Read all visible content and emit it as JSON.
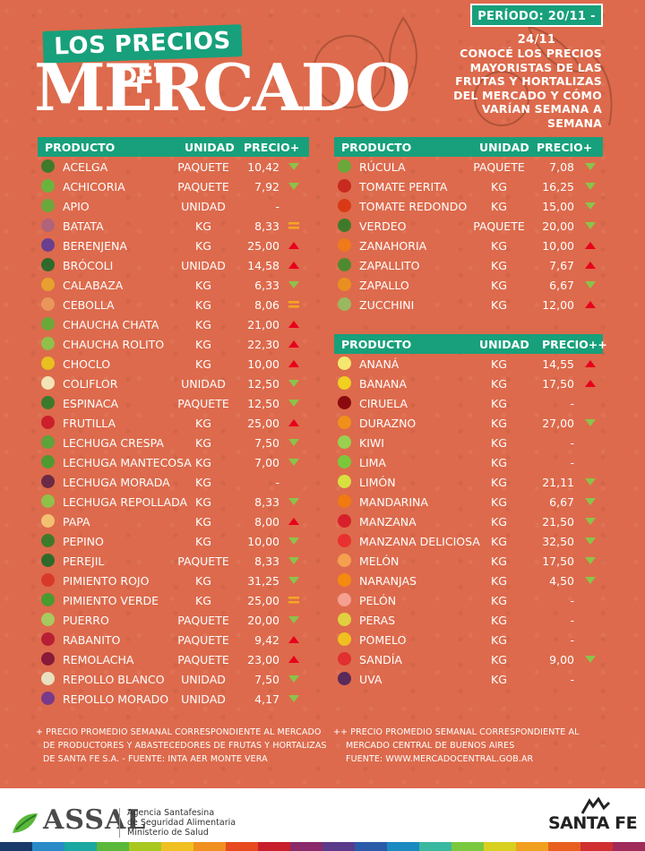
{
  "header": {
    "periodo": "PERÍODO: 20/11 - 24/11",
    "banner": "LOS PRECIOS DEL",
    "title": "MERCADO",
    "subtitle": [
      "CONOCÉ LOS PRECIOS",
      "MAYORISTAS DE LAS",
      "FRUTAS Y HORTALIZAS",
      "DEL MERCADO Y CÓMO",
      "VARÍAN SEMANA A SEMANA"
    ]
  },
  "colors": {
    "accent": "#17a07b",
    "background": "#dd6a4c",
    "up": "#e8001c",
    "down": "#8bc34a",
    "equal": "#f5a623"
  },
  "table_left": {
    "headers": {
      "producto": "PRODUCTO",
      "unidad": "UNIDAD",
      "precio": "PRECIO+"
    },
    "rows": [
      {
        "name": "ACELGA",
        "unit": "PAQUETE",
        "price": "10,42",
        "trend": "down",
        "color": "#3f7a2a"
      },
      {
        "name": "ACHICORIA",
        "unit": "PAQUETE",
        "price": "7,92",
        "trend": "down",
        "color": "#6bb33c"
      },
      {
        "name": "APIO",
        "unit": "UNIDAD",
        "price": "-",
        "trend": "none",
        "color": "#6aa83a"
      },
      {
        "name": "BATATA",
        "unit": "KG",
        "price": "8,33",
        "trend": "equal",
        "color": "#b0637a"
      },
      {
        "name": "BERENJENA",
        "unit": "KG",
        "price": "25,00",
        "trend": "up",
        "color": "#6b3f8f"
      },
      {
        "name": "BRÓCOLI",
        "unit": "UNIDAD",
        "price": "14,58",
        "trend": "up",
        "color": "#2f6a2a"
      },
      {
        "name": "CALABAZA",
        "unit": "KG",
        "price": "6,33",
        "trend": "down",
        "color": "#e8a030"
      },
      {
        "name": "CEBOLLA",
        "unit": "KG",
        "price": "8,06",
        "trend": "equal",
        "color": "#e8965a"
      },
      {
        "name": "CHAUCHA CHATA",
        "unit": "KG",
        "price": "21,00",
        "trend": "up",
        "color": "#6aa83a"
      },
      {
        "name": "CHAUCHA ROLITO",
        "unit": "KG",
        "price": "22,30",
        "trend": "up",
        "color": "#8fc04a"
      },
      {
        "name": "CHOCLO",
        "unit": "KG",
        "price": "10,00",
        "trend": "up",
        "color": "#e8c020"
      },
      {
        "name": "COLIFLOR",
        "unit": "UNIDAD",
        "price": "12,50",
        "trend": "down",
        "color": "#f3e3b5"
      },
      {
        "name": "ESPINACA",
        "unit": "PAQUETE",
        "price": "12,50",
        "trend": "down",
        "color": "#3b7a2a"
      },
      {
        "name": "FRUTILLA",
        "unit": "KG",
        "price": "25,00",
        "trend": "up",
        "color": "#cc1f2a"
      },
      {
        "name": "LECHUGA CRESPA",
        "unit": "KG",
        "price": "7,50",
        "trend": "down",
        "color": "#5ea33a"
      },
      {
        "name": "LECHUGA MANTECOSA",
        "unit": "KG",
        "price": "7,00",
        "trend": "down",
        "color": "#4f9a30"
      },
      {
        "name": "LECHUGA MORADA",
        "unit": "KG",
        "price": "-",
        "trend": "none",
        "color": "#6a2a45"
      },
      {
        "name": "LECHUGA REPOLLADA",
        "unit": "KG",
        "price": "8,33",
        "trend": "down",
        "color": "#8fc04a"
      },
      {
        "name": "PAPA",
        "unit": "KG",
        "price": "8,00",
        "trend": "up",
        "color": "#f2c070"
      },
      {
        "name": "PEPINO",
        "unit": "KG",
        "price": "10,00",
        "trend": "down",
        "color": "#3f7a2a"
      },
      {
        "name": "PEREJIL",
        "unit": "PAQUETE",
        "price": "8,33",
        "trend": "down",
        "color": "#2f6a2a"
      },
      {
        "name": "PIMIENTO ROJO",
        "unit": "KG",
        "price": "31,25",
        "trend": "down",
        "color": "#d83a2a"
      },
      {
        "name": "PIMIENTO VERDE",
        "unit": "KG",
        "price": "25,00",
        "trend": "equal",
        "color": "#4a9a30"
      },
      {
        "name": "PUERRO",
        "unit": "PAQUETE",
        "price": "20,00",
        "trend": "down",
        "color": "#a8c860"
      },
      {
        "name": "RABANITO",
        "unit": "PAQUETE",
        "price": "9,42",
        "trend": "up",
        "color": "#b81f35"
      },
      {
        "name": "REMOLACHA",
        "unit": "PAQUETE",
        "price": "23,00",
        "trend": "up",
        "color": "#8a1a3a"
      },
      {
        "name": "REPOLLO BLANCO",
        "unit": "UNIDAD",
        "price": "7,50",
        "trend": "down",
        "color": "#e8e0c0"
      },
      {
        "name": "REPOLLO MORADO",
        "unit": "UNIDAD",
        "price": "4,17",
        "trend": "down",
        "color": "#7a3a8a"
      }
    ],
    "footnote": [
      "+ PRECIO PROMEDIO SEMANAL CORRESPONDIENTE AL MERCADO",
      "DE PRODUCTORES Y ABASTECEDORES DE FRUTAS Y HORTALIZAS",
      "DE SANTA FE S.A. - FUENTE: INTA AER MONTE VERA"
    ]
  },
  "table_veg_right": {
    "headers": {
      "producto": "PRODUCTO",
      "unidad": "UNIDAD",
      "precio": "PRECIO+"
    },
    "rows": [
      {
        "name": "RÚCULA",
        "unit": "PAQUETE",
        "price": "7,08",
        "trend": "down",
        "color": "#6aa83a"
      },
      {
        "name": "TOMATE PERITA",
        "unit": "KG",
        "price": "16,25",
        "trend": "down",
        "color": "#c82a1f"
      },
      {
        "name": "TOMATE REDONDO",
        "unit": "KG",
        "price": "15,00",
        "trend": "down",
        "color": "#d83a15"
      },
      {
        "name": "VERDEO",
        "unit": "PAQUETE",
        "price": "20,00",
        "trend": "down",
        "color": "#3f7a2a"
      },
      {
        "name": "ZANAHORIA",
        "unit": "KG",
        "price": "10,00",
        "trend": "up",
        "color": "#ee7a1a"
      },
      {
        "name": "ZAPALLITO",
        "unit": "KG",
        "price": "7,67",
        "trend": "up",
        "color": "#4f8a30"
      },
      {
        "name": "ZAPALLO",
        "unit": "KG",
        "price": "6,67",
        "trend": "down",
        "color": "#e8901f"
      },
      {
        "name": "ZUCCHINI",
        "unit": "KG",
        "price": "12,00",
        "trend": "up",
        "color": "#9ab860"
      }
    ]
  },
  "table_fruit_right": {
    "headers": {
      "producto": "PRODUCTO",
      "unidad": "UNIDAD",
      "precio": "PRECIO++"
    },
    "rows": [
      {
        "name": "ANANÁ",
        "unit": "KG",
        "price": "14,55",
        "trend": "up",
        "color": "#f5e870"
      },
      {
        "name": "BANANA",
        "unit": "KG",
        "price": "17,50",
        "trend": "up",
        "color": "#f0d020"
      },
      {
        "name": "CIRUELA",
        "unit": "KG",
        "price": "-",
        "trend": "none",
        "color": "#8a0a10"
      },
      {
        "name": "DURAZNO",
        "unit": "KG",
        "price": "27,00",
        "trend": "down",
        "color": "#f0901a"
      },
      {
        "name": "KIWI",
        "unit": "KG",
        "price": "-",
        "trend": "none",
        "color": "#9ad050"
      },
      {
        "name": "LIMA",
        "unit": "KG",
        "price": "-",
        "trend": "none",
        "color": "#7ac83a"
      },
      {
        "name": "LIMÓN",
        "unit": "KG",
        "price": "21,11",
        "trend": "down",
        "color": "#d8e040"
      },
      {
        "name": "MANDARINA",
        "unit": "KG",
        "price": "6,67",
        "trend": "down",
        "color": "#f07a10"
      },
      {
        "name": "MANZANA",
        "unit": "KG",
        "price": "21,50",
        "trend": "down",
        "color": "#d8202a"
      },
      {
        "name": "MANZANA DELICIOSA",
        "unit": "KG",
        "price": "32,50",
        "trend": "down",
        "color": "#e83030"
      },
      {
        "name": "MELÓN",
        "unit": "KG",
        "price": "17,50",
        "trend": "down",
        "color": "#f5a050"
      },
      {
        "name": "NARANJAS",
        "unit": "KG",
        "price": "4,50",
        "trend": "down",
        "color": "#f58a10"
      },
      {
        "name": "PELÓN",
        "unit": "KG",
        "price": "-",
        "trend": "none",
        "color": "#f5a090"
      },
      {
        "name": "PERAS",
        "unit": "KG",
        "price": "-",
        "trend": "none",
        "color": "#e0d040"
      },
      {
        "name": "POMELO",
        "unit": "KG",
        "price": "-",
        "trend": "none",
        "color": "#f0c020"
      },
      {
        "name": "SANDÍA",
        "unit": "KG",
        "price": "9,00",
        "trend": "down",
        "color": "#e03030"
      },
      {
        "name": "UVA",
        "unit": "KG",
        "price": "-",
        "trend": "none",
        "color": "#5a2a5a"
      }
    ],
    "footnote": [
      "++ PRECIO PROMEDIO SEMANAL CORRESPONDIENTE AL",
      "MERCADO CENTRAL DE BUENOS AIRES",
      "FUENTE: WWW.MERCADOCENTRAL.GOB.AR"
    ]
  },
  "footer": {
    "assal_logo": "ASSAL",
    "assal_info": [
      "Agencia Santafesina",
      "de Seguridad Alimentaria",
      "Ministerio de Salud"
    ],
    "santafe_logo": "SANTA FE",
    "colorbar": [
      "#1a3a6a",
      "#2a8ac8",
      "#1aa8a0",
      "#5ab83a",
      "#a8c820",
      "#f0c020",
      "#f09020",
      "#e84a20",
      "#c8202a",
      "#8a2a6a",
      "#5a3a8a",
      "#2a5aa8",
      "#1a8ac0",
      "#3ab8a0",
      "#7ac840",
      "#d8d020",
      "#f0a020",
      "#e86020",
      "#d03030",
      "#a02a5a"
    ]
  }
}
